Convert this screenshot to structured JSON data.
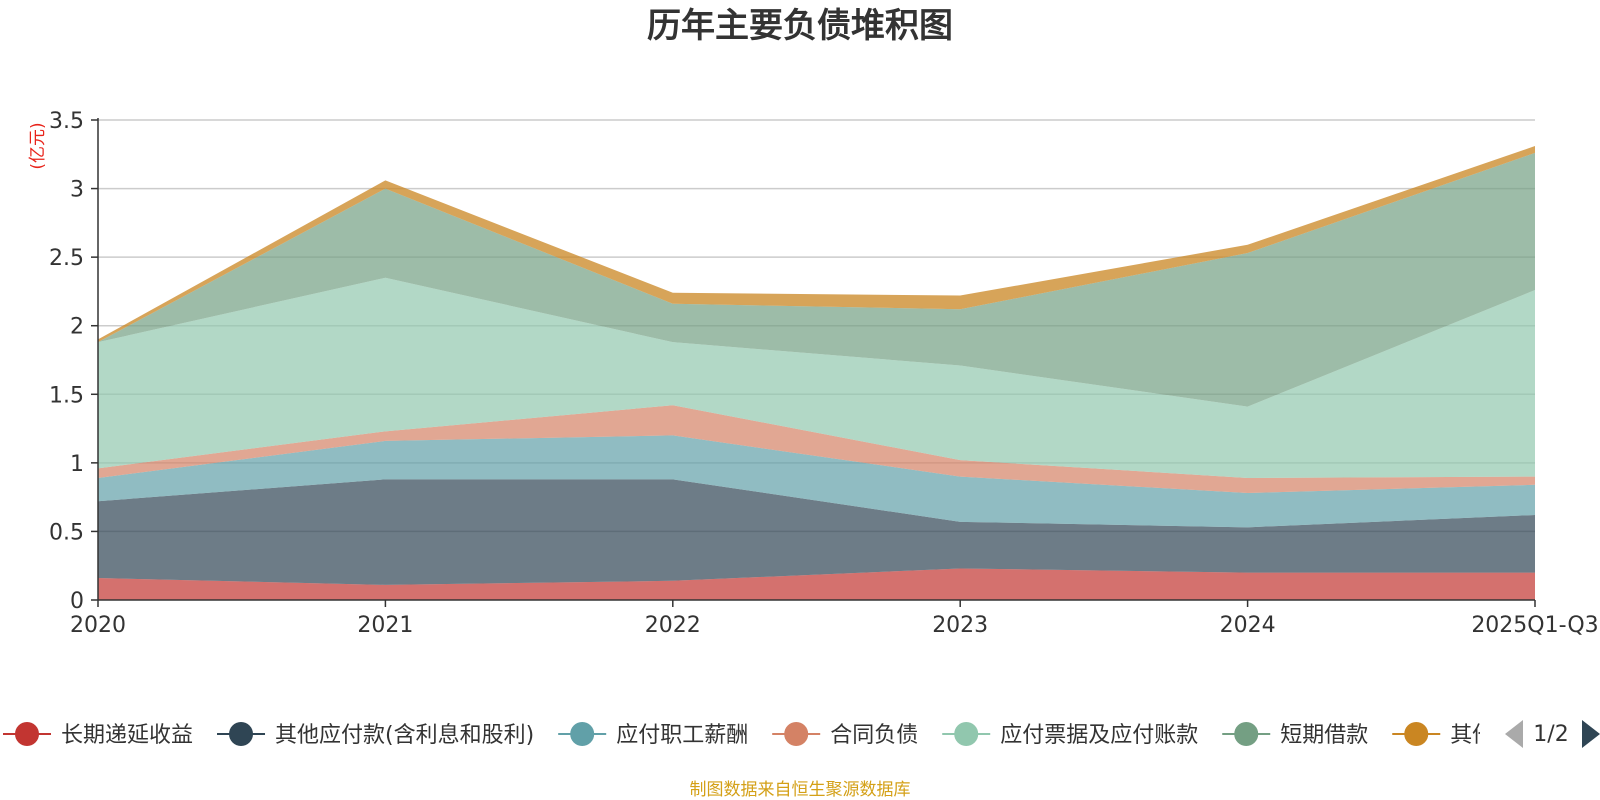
{
  "chart_data": {
    "type": "area",
    "stacked": true,
    "title": "历年主要负债堆积图",
    "ylabel": "(亿元)",
    "xlabel": "",
    "ylim": [
      0,
      3.5
    ],
    "yticks": [
      "0",
      "0.5",
      "1",
      "1.5",
      "2",
      "2.5",
      "3",
      "3.5"
    ],
    "categories": [
      "2020",
      "2021",
      "2022",
      "2023",
      "2024",
      "2025Q1-Q3"
    ],
    "series": [
      {
        "name": "长期递延收益",
        "color": "#c23531",
        "values": [
          0.16,
          0.11,
          0.14,
          0.23,
          0.2,
          0.2
        ]
      },
      {
        "name": "其他应付款(含利息和股利)",
        "color": "#2f4554",
        "values": [
          0.56,
          0.77,
          0.74,
          0.34,
          0.33,
          0.42
        ]
      },
      {
        "name": "应付职工薪酬",
        "color": "#61a0a8",
        "values": [
          0.17,
          0.28,
          0.32,
          0.33,
          0.25,
          0.22
        ]
      },
      {
        "name": "合同负债",
        "color": "#d48265",
        "values": [
          0.07,
          0.07,
          0.22,
          0.12,
          0.11,
          0.06
        ]
      },
      {
        "name": "应付票据及应付账款",
        "color": "#91c7ae",
        "values": [
          0.92,
          1.12,
          0.46,
          0.69,
          0.52,
          1.36
        ]
      },
      {
        "name": "短期借款",
        "color": "#749f83",
        "values": [
          0.0,
          0.65,
          0.28,
          0.41,
          1.12,
          1.0
        ]
      },
      {
        "name": "其他",
        "color": "#ca8622",
        "values": [
          0.02,
          0.06,
          0.08,
          0.1,
          0.06,
          0.05
        ]
      }
    ],
    "legend_position": "bottom",
    "legend_page": "1/2",
    "source": "制图数据来自恒生聚源数据库"
  }
}
